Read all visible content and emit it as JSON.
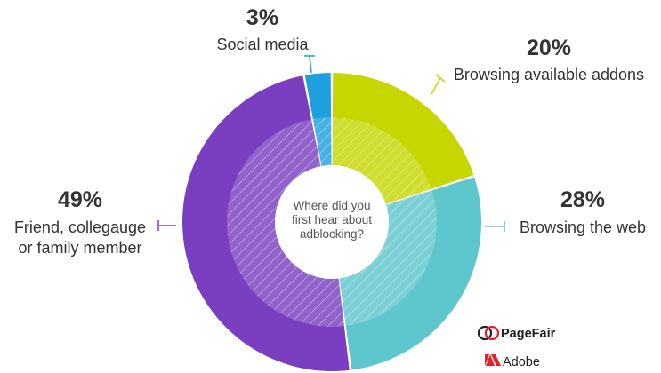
{
  "chart_data": {
    "type": "pie",
    "center_label_lines": [
      "Where did you",
      "first hear about",
      "adblocking?"
    ],
    "slices": [
      {
        "label": "Browsing available addons",
        "label_lines": [
          "Browsing available addons"
        ],
        "value": 20,
        "value_label": "20%",
        "color": "#c5d600"
      },
      {
        "label": "Browsing the web",
        "label_lines": [
          "Browsing the web"
        ],
        "value": 28,
        "value_label": "28%",
        "color": "#5ec6cd"
      },
      {
        "label": "Friend, collegauge or family member",
        "label_lines": [
          "Friend, collegauge",
          "or family member"
        ],
        "value": 49,
        "value_label": "49%",
        "color": "#7a3fc0"
      },
      {
        "label": "Social media",
        "label_lines": [
          "Social media"
        ],
        "value": 3,
        "value_label": "3%",
        "color": "#1e9fde"
      }
    ]
  },
  "logos": {
    "pagefair": "PageFair",
    "adobe": "Adobe"
  },
  "colors": {
    "text": "#333333",
    "pagefair_accent": "#e2222b",
    "adobe_accent": "#e2222b"
  }
}
